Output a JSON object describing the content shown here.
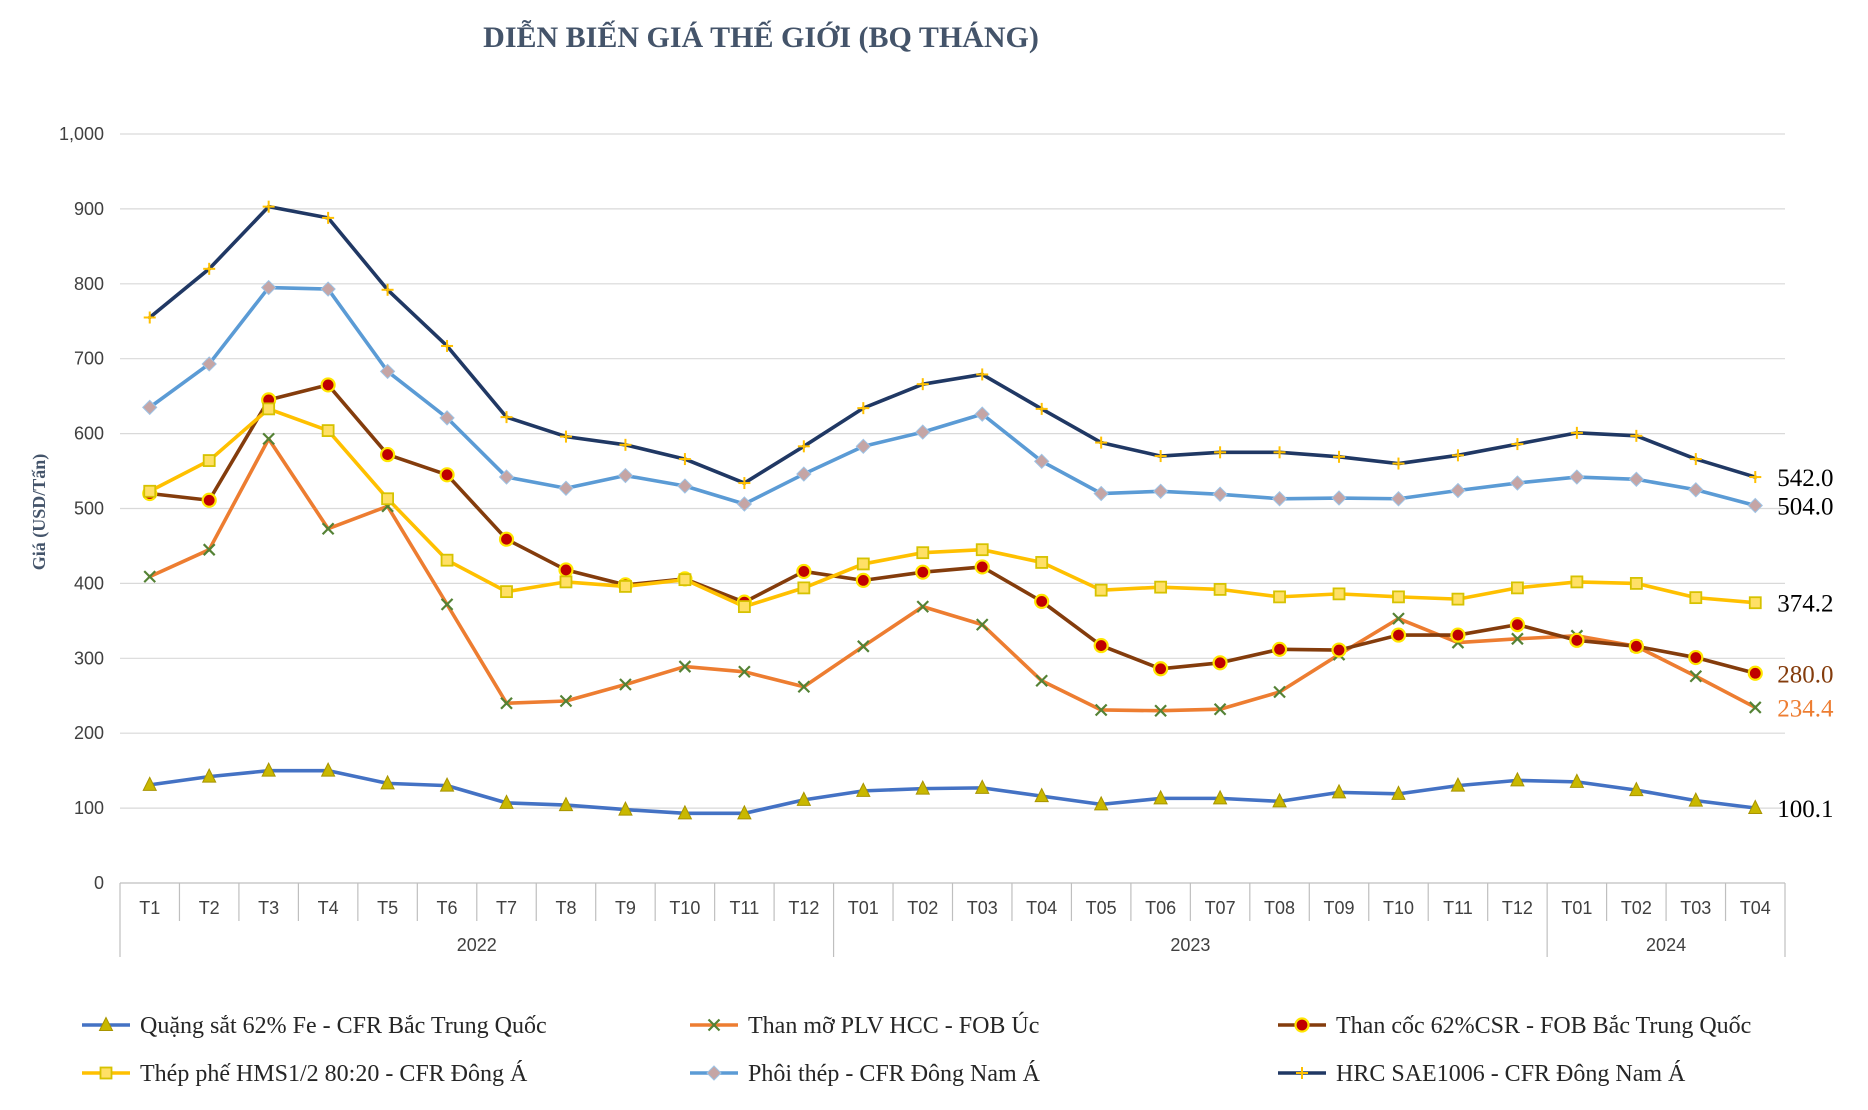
{
  "chart_data": {
    "type": "line",
    "title": "DIỄN BIẾN GIÁ THẾ GIỚI (BQ THÁNG)",
    "ylabel": "Giá (USD/Tấn)",
    "xlabel": "",
    "ylim": [
      0,
      1000
    ],
    "yticks": [
      0,
      100,
      200,
      300,
      400,
      500,
      600,
      700,
      800,
      900,
      1000
    ],
    "ytick_labels": [
      "0",
      "100",
      "200",
      "300",
      "400",
      "500",
      "600",
      "700",
      "800",
      "900",
      "1,000"
    ],
    "categories": [
      "T1",
      "T2",
      "T3",
      "T4",
      "T5",
      "T6",
      "T7",
      "T8",
      "T9",
      "T10",
      "T11",
      "T12",
      "T01",
      "T02",
      "T03",
      "T04",
      "T05",
      "T06",
      "T07",
      "T08",
      "T09",
      "T10",
      "T11",
      "T12",
      "T01",
      "T02",
      "T03",
      "T04"
    ],
    "year_groups": [
      {
        "label": "2022",
        "start": 0,
        "end": 11
      },
      {
        "label": "2023",
        "start": 12,
        "end": 23
      },
      {
        "label": "2024",
        "start": 24,
        "end": 27
      }
    ],
    "grid": true,
    "legend_position": "bottom",
    "series": [
      {
        "name": "Quặng sắt 62% Fe - CFR Bắc Trung Quốc",
        "color": "#4472c4",
        "marker": "triangle",
        "marker_color": "#c9b800",
        "values": [
          131,
          142,
          150,
          150,
          133,
          130,
          107,
          104,
          98,
          93,
          93,
          111,
          123,
          126,
          127,
          116,
          105,
          113,
          113,
          109,
          121,
          119,
          130,
          137,
          135,
          124,
          110,
          100.1
        ],
        "end_label": "100.1",
        "end_label_color": "#000000"
      },
      {
        "name": "Than mỡ PLV HCC - FOB Úc",
        "color": "#ed7d31",
        "marker": "x",
        "marker_color": "#548235",
        "values": [
          409,
          445,
          593,
          473,
          503,
          372,
          240,
          243,
          265,
          289,
          282,
          262,
          316,
          369,
          345,
          270,
          231,
          230,
          232,
          255,
          305,
          353,
          321,
          326,
          330,
          316,
          276,
          234.4
        ],
        "end_label": "234.4",
        "end_label_color": "#ed7d31"
      },
      {
        "name": "Than cốc 62%CSR - FOB Bắc Trung Quốc",
        "color": "#843c0c",
        "marker": "circle",
        "marker_color": "#c00000",
        "values": [
          520,
          511,
          645,
          665,
          572,
          545,
          459,
          418,
          398,
          406,
          375,
          416,
          404,
          415,
          422,
          376,
          317,
          286,
          294,
          312,
          311,
          331,
          331,
          345,
          324,
          316,
          301,
          280.0
        ],
        "end_label": "280.0",
        "end_label_color": "#843c0c"
      },
      {
        "name": "Thép phế HMS1/2 80:20  - CFR Đông Á",
        "color": "#ffc000",
        "marker": "square",
        "marker_color": "#d6c200",
        "values": [
          523,
          564,
          633,
          604,
          513,
          431,
          389,
          402,
          396,
          405,
          369,
          394,
          426,
          441,
          445,
          428,
          391,
          395,
          392,
          382,
          386,
          382,
          379,
          394,
          402,
          400,
          381,
          374.2
        ],
        "end_label": "374.2",
        "end_label_color": "#000000"
      },
      {
        "name": "Phôi thép - CFR Đông Nam Á",
        "color": "#5b9bd5",
        "marker": "diamond",
        "marker_color": "#c5a5a5",
        "values": [
          635,
          693,
          795,
          793,
          683,
          621,
          542,
          527,
          544,
          530,
          506,
          546,
          583,
          602,
          626,
          563,
          520,
          523,
          519,
          513,
          514,
          513,
          524,
          534,
          542,
          539,
          525,
          504.0
        ],
        "end_label": "504.0",
        "end_label_color": "#000000"
      },
      {
        "name": "HRC SAE1006 - CFR Đông Nam Á",
        "color": "#203864",
        "marker": "plus",
        "marker_color": "#ffc000",
        "values": [
          755,
          820,
          903,
          888,
          792,
          717,
          622,
          596,
          585,
          566,
          534,
          583,
          634,
          666,
          679,
          633,
          588,
          570,
          575,
          575,
          569,
          560,
          571,
          586,
          601,
          597,
          566,
          542.0
        ],
        "end_label": "542.0",
        "end_label_color": "#000000"
      }
    ]
  }
}
